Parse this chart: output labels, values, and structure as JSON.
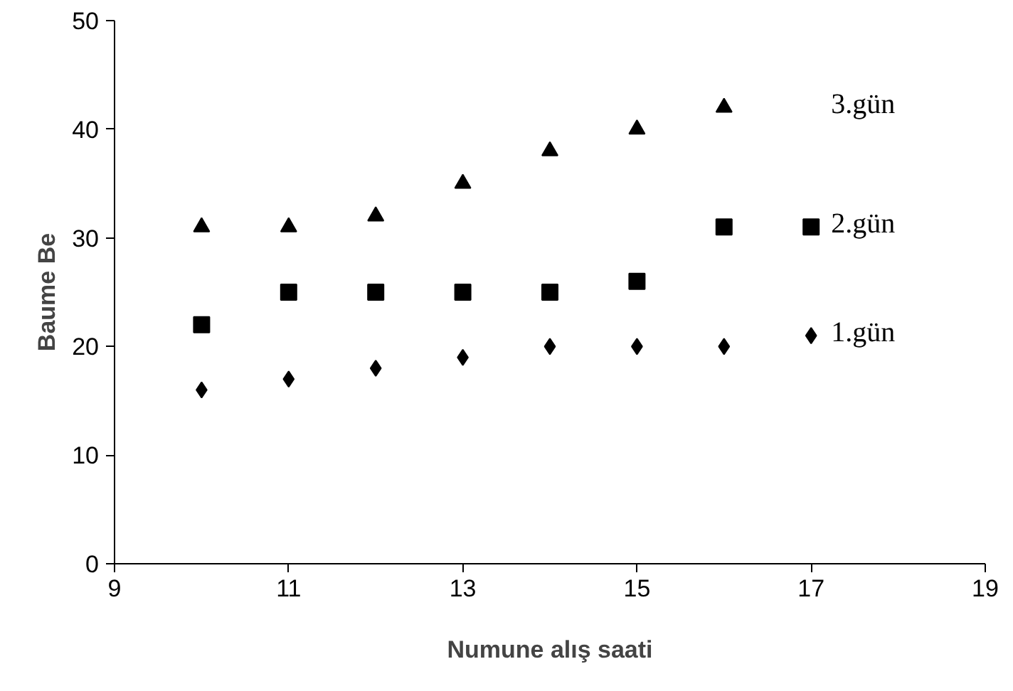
{
  "chart_data": {
    "type": "scatter",
    "xlabel": "Numune alış saati",
    "ylabel": "Baume Be",
    "xlim": [
      9,
      19
    ],
    "xticks": [
      9,
      11,
      13,
      15,
      17,
      19
    ],
    "ylim": [
      0,
      50
    ],
    "yticks": [
      0,
      10,
      20,
      30,
      40,
      50
    ],
    "grid": false,
    "legend": false,
    "series": [
      {
        "name": "1.gün",
        "color": "#000000",
        "marker": "diamond",
        "x": [
          10,
          11,
          12,
          13,
          14,
          15,
          16,
          17
        ],
        "values": [
          16,
          17,
          18,
          19,
          20,
          20,
          20,
          21
        ]
      },
      {
        "name": "2.gün",
        "color": "#000000",
        "marker": "square",
        "x": [
          10,
          11,
          12,
          13,
          14,
          15,
          16,
          17
        ],
        "values": [
          22,
          25,
          25,
          25,
          25,
          26,
          31,
          31
        ]
      },
      {
        "name": "3.gün",
        "color": "#000000",
        "marker": "triangle",
        "x": [
          10,
          11,
          12,
          13,
          14,
          15,
          16
        ],
        "values": [
          31,
          31,
          32,
          35,
          38,
          40,
          42
        ]
      }
    ]
  }
}
